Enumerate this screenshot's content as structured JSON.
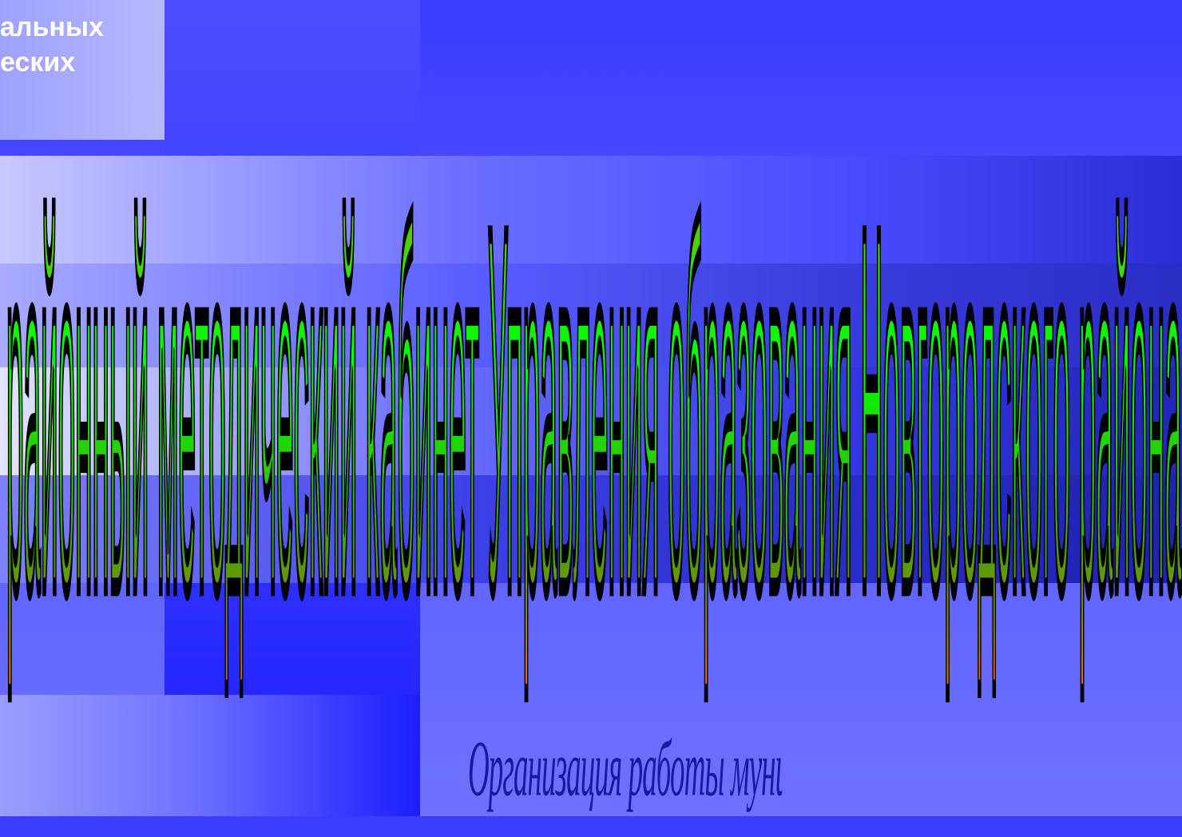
{
  "slide": {
    "top_left_text": "альных\nеских",
    "title": "районный методический кабинет Управления образования Новгородского района",
    "subtitle": "Организация работы муниципальной методической службы на принципах сетевого взаимодействия"
  },
  "colors": {
    "title_fill_top": "#00ff00",
    "title_fill_bottom": "#ff6a00",
    "title_stroke": "#000000",
    "background": "#3a3cff",
    "subtitle": "#1a1aa0"
  }
}
